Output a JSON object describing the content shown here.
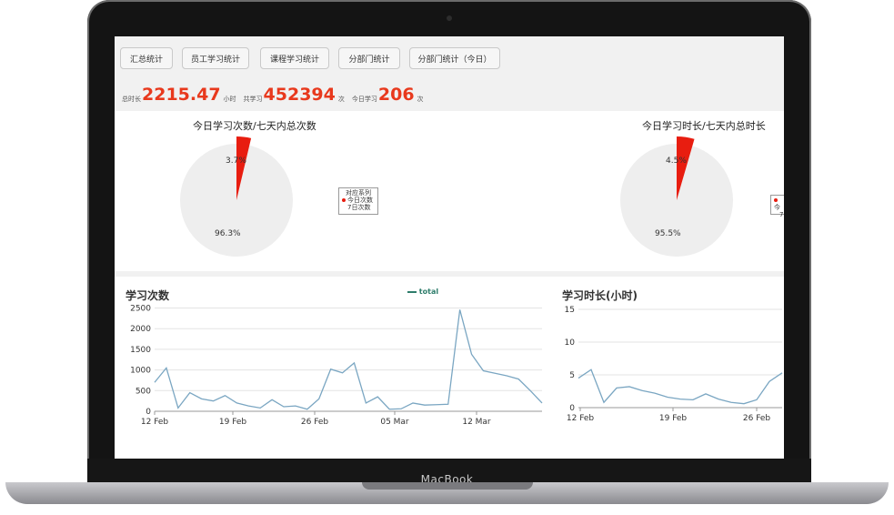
{
  "device": {
    "brand": "MacBook"
  },
  "tabs": [
    {
      "label": "汇总统计"
    },
    {
      "label": "员工学习统计"
    },
    {
      "label": "课程学习统计"
    },
    {
      "label": "分部门统计"
    },
    {
      "label": "分部门统计（今日）"
    }
  ],
  "stats": {
    "duration_label": "总时长",
    "duration_value": "2215.47",
    "duration_unit": "小时",
    "total_label": "共学习",
    "total_value": "452394",
    "total_unit": "次",
    "today_label": "今日学习",
    "today_value": "206",
    "today_unit": "次"
  },
  "pies": [
    {
      "title": "今日学习次数/七天内总次数",
      "slice_label": "3.7%",
      "rest_label": "96.3%",
      "slice_fraction": 0.037,
      "legend": {
        "title": "对应系列",
        "items": [
          "今日次数",
          "7日次数"
        ]
      }
    },
    {
      "title": "今日学习时长/七天内总时长",
      "slice_label": "4.5%",
      "rest_label": "95.5%",
      "slice_fraction": 0.045,
      "legend": {
        "title": "",
        "items": [
          "今",
          "7"
        ]
      }
    }
  ],
  "colors": {
    "accent": "#e8391d",
    "slice": "#e81d10",
    "pie_rest": "#eeeeee",
    "line": "#7aa6c2",
    "legend": "#2e7d6b"
  },
  "chart_data": [
    {
      "type": "line",
      "title": "学习次数",
      "series": [
        {
          "name": "total",
          "values": [
            700,
            1050,
            80,
            450,
            300,
            250,
            380,
            200,
            130,
            80,
            280,
            110,
            130,
            50,
            300,
            1020,
            930,
            1170,
            200,
            350,
            50,
            60,
            200,
            150,
            160,
            170,
            2460,
            1380,
            980,
            920,
            860,
            780,
            500,
            200
          ]
        }
      ],
      "x_ticks": [
        "12 Feb",
        "19 Feb",
        "26 Feb",
        "05 Mar",
        "12 Mar"
      ],
      "y_ticks": [
        "0",
        "500",
        "1000",
        "1500",
        "2000",
        "2500"
      ],
      "ylim": [
        0,
        2600
      ]
    },
    {
      "type": "line",
      "title": "学习时长(小时)",
      "series": [
        {
          "values": [
            4.5,
            5.8,
            0.8,
            3.0,
            3.2,
            2.6,
            2.2,
            1.6,
            1.3,
            1.2,
            2.1,
            1.3,
            0.8,
            0.6,
            1.2,
            4.0,
            5.3
          ]
        }
      ],
      "x_ticks": [
        "12 Feb",
        "19 Feb",
        "26 Feb"
      ],
      "y_ticks": [
        "0",
        "5",
        "10",
        "15"
      ],
      "ylim": [
        0,
        15
      ]
    }
  ]
}
